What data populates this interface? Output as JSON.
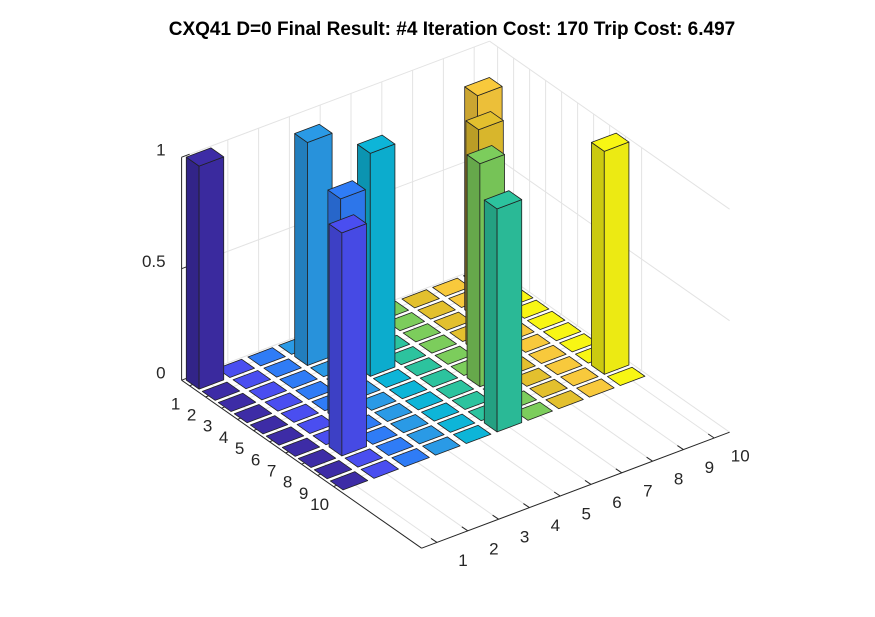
{
  "chart_data": {
    "type": "bar3",
    "title": "CXQ41 D=0 Final Result: #4 Iteration Cost: 170 Trip Cost: 6.497",
    "values": [
      [
        1,
        0,
        0,
        0,
        0,
        0,
        0,
        0,
        0,
        0
      ],
      [
        0,
        0,
        0,
        1,
        0,
        0,
        0,
        0,
        0,
        0
      ],
      [
        0,
        0,
        0,
        0,
        0,
        0,
        0,
        0,
        1,
        0
      ],
      [
        0,
        0,
        0,
        0,
        1,
        0,
        0,
        0,
        0,
        0
      ],
      [
        0,
        0,
        0,
        0,
        0,
        0,
        0,
        1,
        0,
        0
      ],
      [
        0,
        0,
        1,
        0,
        0,
        0,
        0,
        0,
        0,
        0
      ],
      [
        0,
        0,
        0,
        0,
        0,
        0,
        1,
        0,
        0,
        0
      ],
      [
        0,
        1,
        0,
        0,
        0,
        0,
        0,
        0,
        0,
        0
      ],
      [
        0,
        0,
        0,
        0,
        0,
        0,
        0,
        0,
        0,
        1
      ],
      [
        0,
        0,
        0,
        0,
        0,
        1,
        0,
        0,
        0,
        0
      ]
    ],
    "colors": [
      "#3d2ca6",
      "#4a4ef0",
      "#2f7cf6",
      "#2a9ae6",
      "#0db5d8",
      "#2cc39e",
      "#7ccd5c",
      "#e3c02e",
      "#f8c93c",
      "#f8f614"
    ],
    "xlim": [
      0.5,
      10.5
    ],
    "xticks": [
      1,
      2,
      3,
      4,
      5,
      6,
      7,
      8,
      9,
      10
    ],
    "ylim": [
      0.5,
      15.5
    ],
    "yticks": [
      1,
      2,
      3,
      4,
      5,
      6,
      7,
      8,
      9,
      10
    ],
    "zlim": [
      0,
      1
    ],
    "zticks": [
      0,
      0.5,
      1
    ],
    "grid": true
  }
}
